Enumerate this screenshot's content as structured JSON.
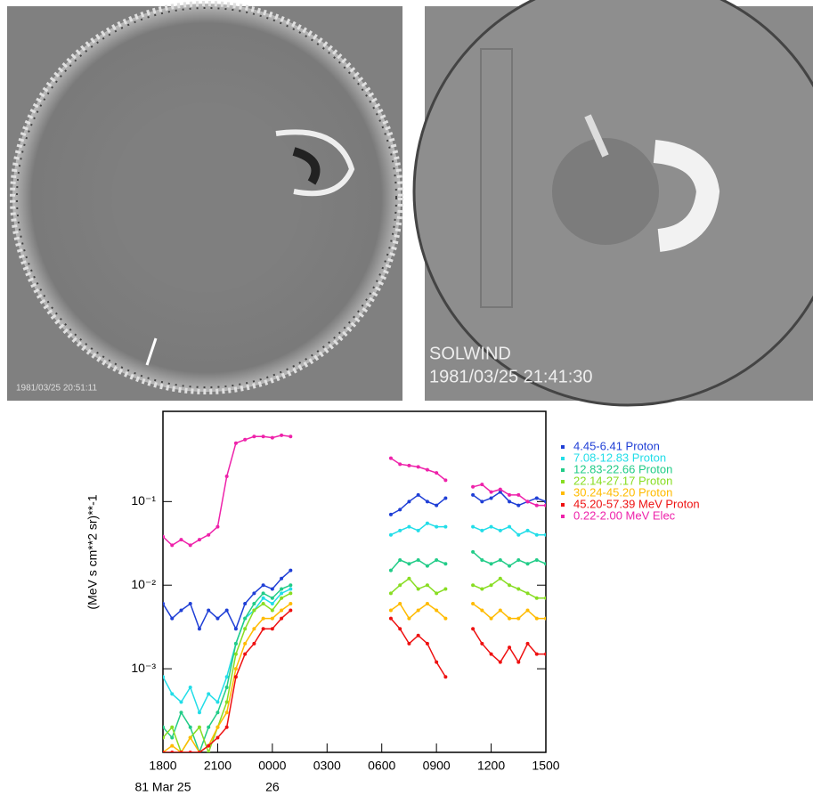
{
  "images": {
    "left": {
      "timestamp": "1981/03/25 20:51:11"
    },
    "right": {
      "instrument": "SOLWIND",
      "timestamp": "1981/03/25 21:41:30"
    }
  },
  "chart_data": {
    "type": "line",
    "y_label": "(MeV s cm**2 sr)**-1",
    "log_y": true,
    "xlim": [
      18,
      39
    ],
    "ylim": [
      0.0001,
      1.2
    ],
    "xticks": [
      {
        "value": 18,
        "label": "1800"
      },
      {
        "value": 21,
        "label": "2100"
      },
      {
        "value": 24,
        "label": "0000"
      },
      {
        "value": 27,
        "label": "0300"
      },
      {
        "value": 30,
        "label": "0600"
      },
      {
        "value": 33,
        "label": "0900"
      },
      {
        "value": 36,
        "label": "1200"
      },
      {
        "value": 39,
        "label": "1500"
      }
    ],
    "date_labels": [
      {
        "value": 18,
        "label": "81 Mar 25"
      },
      {
        "value": 24,
        "label": "26"
      }
    ],
    "yticks": [
      {
        "value": 0.001,
        "label": "10⁻³"
      },
      {
        "value": 0.01,
        "label": "10⁻²"
      },
      {
        "value": 0.1,
        "label": "10⁻¹"
      }
    ],
    "x": [
      18,
      18.5,
      19,
      19.5,
      20,
      20.5,
      21,
      21.5,
      22,
      22.5,
      23,
      23.5,
      24,
      24.5,
      25,
      28,
      30.5,
      31,
      31.5,
      32,
      32.5,
      33,
      33.5,
      34,
      35,
      35.5,
      36,
      36.5,
      37,
      37.5,
      38,
      38.5,
      39
    ],
    "series": [
      {
        "name": "4.45-6.41 Proton",
        "color": "#1f3fd6",
        "values": [
          0.006,
          0.004,
          0.005,
          0.006,
          0.003,
          0.005,
          0.004,
          0.005,
          0.003,
          0.006,
          0.008,
          0.01,
          0.009,
          0.012,
          0.015,
          null,
          0.07,
          0.08,
          0.1,
          0.12,
          0.1,
          0.09,
          0.11,
          null,
          0.12,
          0.1,
          0.11,
          0.13,
          0.1,
          0.09,
          0.1,
          0.11,
          0.1
        ]
      },
      {
        "name": "7.08-12.83 Proton",
        "color": "#22dde8",
        "values": [
          0.0008,
          0.0005,
          0.0004,
          0.0006,
          0.0003,
          0.0005,
          0.0004,
          0.0008,
          0.002,
          0.004,
          0.005,
          0.007,
          0.006,
          0.008,
          0.009,
          null,
          0.04,
          0.045,
          0.05,
          0.045,
          0.055,
          0.05,
          0.05,
          null,
          0.05,
          0.045,
          0.05,
          0.045,
          0.05,
          0.04,
          0.045,
          0.04,
          0.04
        ]
      },
      {
        "name": "12.83-22.66 Proton",
        "color": "#22cc88",
        "values": [
          0.0002,
          0.00015,
          0.0003,
          0.0002,
          0.0001,
          0.0002,
          0.0003,
          0.0006,
          0.002,
          0.004,
          0.006,
          0.008,
          0.007,
          0.009,
          0.01,
          null,
          0.015,
          0.02,
          0.018,
          0.02,
          0.017,
          0.02,
          0.018,
          null,
          0.025,
          0.02,
          0.018,
          0.02,
          0.017,
          0.02,
          0.018,
          0.02,
          0.018
        ]
      },
      {
        "name": "22.14-27.17 Proton",
        "color": "#88dd22",
        "values": [
          0.00015,
          0.0002,
          0.0001,
          0.00015,
          0.0002,
          0.0001,
          0.0002,
          0.0004,
          0.0015,
          0.003,
          0.005,
          0.006,
          0.005,
          0.007,
          0.008,
          null,
          0.008,
          0.01,
          0.012,
          0.009,
          0.01,
          0.008,
          0.009,
          null,
          0.01,
          0.009,
          0.01,
          0.012,
          0.01,
          0.009,
          0.008,
          0.007,
          0.007
        ]
      },
      {
        "name": "30.24-45.20 Proton",
        "color": "#ffbb00",
        "values": [
          0.0001,
          0.00012,
          0.0001,
          0.00015,
          0.0001,
          0.00012,
          0.0002,
          0.0003,
          0.001,
          0.002,
          0.003,
          0.004,
          0.004,
          0.005,
          0.006,
          null,
          0.005,
          0.006,
          0.004,
          0.005,
          0.006,
          0.005,
          0.004,
          null,
          0.006,
          0.005,
          0.004,
          0.005,
          0.004,
          0.004,
          0.005,
          0.004,
          0.004
        ]
      },
      {
        "name": "45.20-57.39 MeV Proton",
        "color": "#ee1111",
        "values": [
          0.0001,
          0.0001,
          0.0001,
          0.0001,
          0.0001,
          0.00012,
          0.00015,
          0.0002,
          0.0008,
          0.0015,
          0.002,
          0.003,
          0.003,
          0.004,
          0.005,
          null,
          0.004,
          0.003,
          0.002,
          0.0025,
          0.002,
          0.0012,
          0.0008,
          null,
          0.003,
          0.002,
          0.0015,
          0.0012,
          0.0018,
          0.0012,
          0.002,
          0.0015,
          0.0015
        ]
      },
      {
        "name": "0.22-2.00 MeV Elec",
        "color": "#ee22aa",
        "values": [
          0.038,
          0.03,
          0.035,
          0.03,
          0.035,
          0.04,
          0.05,
          0.2,
          0.5,
          0.55,
          0.6,
          0.6,
          0.58,
          0.62,
          0.6,
          null,
          0.33,
          0.28,
          0.27,
          0.26,
          0.24,
          0.22,
          0.18,
          null,
          0.15,
          0.16,
          0.13,
          0.14,
          0.12,
          0.12,
          0.1,
          0.09,
          0.09
        ]
      }
    ]
  }
}
